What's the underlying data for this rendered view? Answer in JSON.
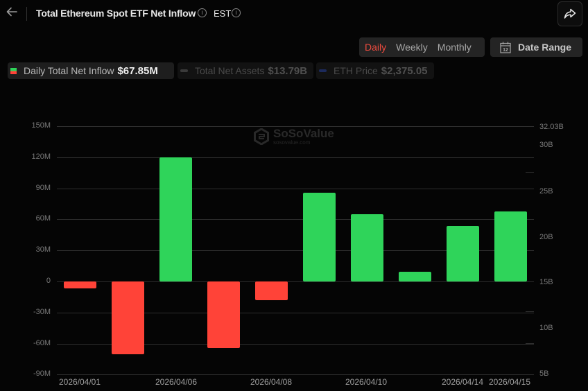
{
  "header": {
    "title": "Total Ethereum Spot ETF Net Inflow",
    "timezone": "EST",
    "info_icon": "info-icon",
    "back_icon": "arrow-left-icon",
    "share_icon": "share-icon"
  },
  "controls": {
    "periods": [
      "Daily",
      "Weekly",
      "Monthly"
    ],
    "active_period": "Daily",
    "date_range_label": "Date Range",
    "date_range_icon": "calendar-icon"
  },
  "legend": [
    {
      "label": "Daily Total Net Inflow",
      "value": "$67.85M",
      "active": true
    },
    {
      "label": "Total Net Assets",
      "value": "$13.79B",
      "active": false
    },
    {
      "label": "ETH Price",
      "value": "$2,375.05",
      "active": false
    }
  ],
  "watermark": {
    "name": "SoSoValue",
    "url": "sosovalue.com"
  },
  "colors": {
    "positive": "#2fd45a",
    "negative": "#ff4338",
    "active_tab": "#ef4b3f",
    "background": "#050505"
  },
  "chart_data": {
    "type": "bar",
    "title": "Total Ethereum Spot ETF Net Inflow",
    "categories": [
      "2026/04/01",
      "2026/04/02",
      "2026/04/06",
      "2026/04/07",
      "2026/04/08",
      "2026/04/09",
      "2026/04/10",
      "2026/04/13",
      "2026/04/14",
      "2026/04/15"
    ],
    "series": [
      {
        "name": "Daily Total Net Inflow",
        "unit": "USD millions",
        "values": [
          -6.5,
          -70.5,
          120.0,
          -64.2,
          -18.0,
          85.6,
          64.9,
          9.4,
          53.5,
          67.85
        ]
      }
    ],
    "x_tick_labels": [
      "2026/04/01",
      "2026/04/06",
      "2026/04/08",
      "2026/04/10",
      "2026/04/14",
      "2026/04/15"
    ],
    "y_left": {
      "ticks": [
        "150M",
        "120M",
        "90M",
        "60M",
        "30M",
        "0",
        "-30M",
        "-60M",
        "-90M"
      ],
      "range": [
        -90,
        150
      ]
    },
    "y_right": {
      "ticks": [
        "32.03B",
        "30B",
        "25B",
        "20B",
        "15B",
        "10B",
        "5B"
      ],
      "range": [
        5,
        32.03
      ]
    },
    "grid": true,
    "legend_position": "top-left"
  }
}
